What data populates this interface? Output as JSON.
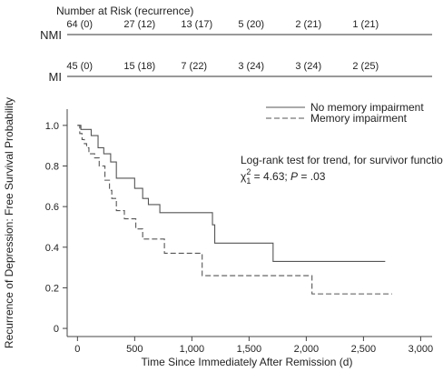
{
  "risk_table": {
    "title": "Number at Risk (recurrence)",
    "rows": [
      {
        "label": "NMI",
        "cells": [
          "64 (0)",
          "27 (12)",
          "13 (17)",
          "5 (20)",
          "2 (21)",
          "1 (21)"
        ]
      },
      {
        "label": "MI",
        "cells": [
          "45 (0)",
          "15 (18)",
          "7 (22)",
          "3 (24)",
          "3 (24)",
          "2 (25)"
        ]
      }
    ],
    "cell_x": [
      0,
      500,
      1000,
      1500,
      2000,
      2500
    ]
  },
  "annotation": {
    "prefix": "Log-rank test for trend, for survivor function",
    "chi": "χ",
    "sup": "2",
    "sub": "1",
    "rest": " = 4.63; ",
    "p": "P",
    "p_rest": " = .03"
  },
  "chart_data": {
    "type": "line",
    "title": "",
    "xlabel": "Time Since Immediately After Remission (d)",
    "ylabel": "Recurrence of Depression: Free Survival Probability",
    "xlim": [
      -90,
      3100
    ],
    "ylim": [
      -0.04,
      1.08
    ],
    "x_ticks": [
      0,
      500,
      1000,
      1500,
      2000,
      2500,
      3000
    ],
    "x_tick_labels": [
      "0",
      "500",
      "1,000",
      "1,500",
      "2,000",
      "2,500",
      "3,000"
    ],
    "y_ticks": [
      0,
      0.2,
      0.4,
      0.6,
      0.8,
      1.0
    ],
    "y_tick_labels": [
      "0",
      "0.2",
      "0.4",
      "0.6",
      "0.8",
      "1.0"
    ],
    "grid": false,
    "legend_position": "top-right",
    "series": [
      {
        "name": "No memory impairment",
        "style": "solid",
        "color": "#555555",
        "x": [
          0,
          30,
          120,
          180,
          230,
          290,
          340,
          500,
          570,
          620,
          720,
          1180,
          1200,
          1710,
          2690
        ],
        "y": [
          1.0,
          0.98,
          0.95,
          0.89,
          0.86,
          0.82,
          0.74,
          0.69,
          0.64,
          0.61,
          0.57,
          0.51,
          0.42,
          0.33,
          0.33
        ]
      },
      {
        "name": "Memory impairment",
        "style": "dashed",
        "color": "#555555",
        "x": [
          0,
          20,
          40,
          60,
          80,
          100,
          150,
          190,
          240,
          280,
          300,
          340,
          410,
          510,
          570,
          760,
          1090,
          2050,
          2750
        ],
        "y": [
          1.0,
          0.96,
          0.93,
          0.91,
          0.89,
          0.86,
          0.84,
          0.8,
          0.73,
          0.68,
          0.64,
          0.58,
          0.54,
          0.49,
          0.44,
          0.37,
          0.26,
          0.17,
          0.17
        ]
      }
    ]
  }
}
